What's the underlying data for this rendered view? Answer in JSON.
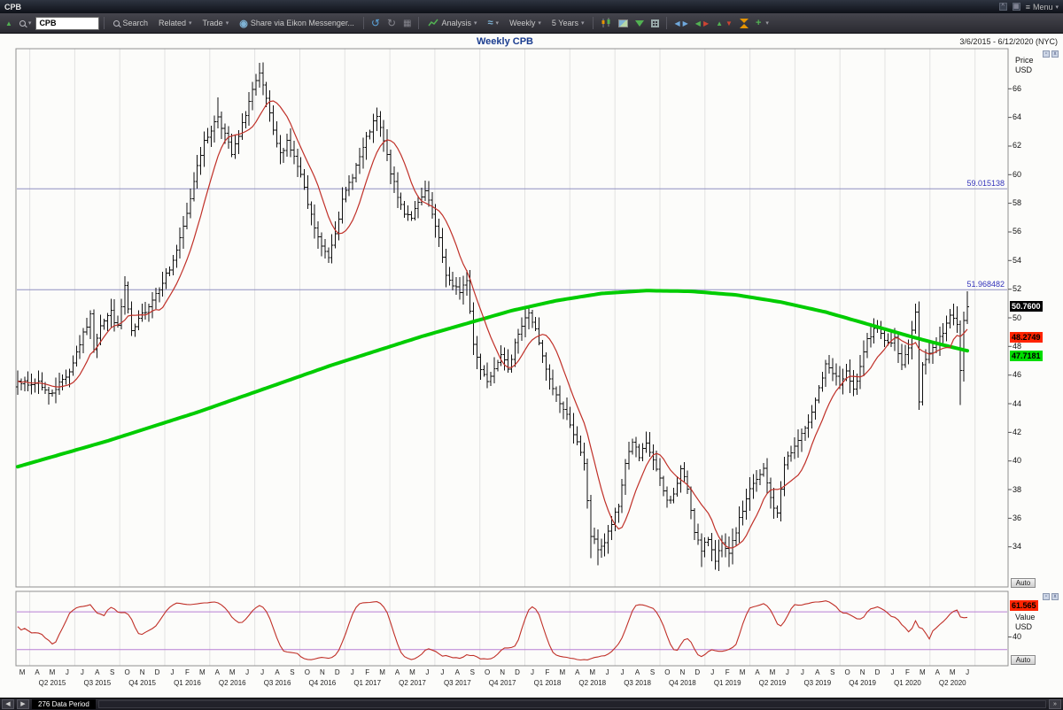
{
  "window": {
    "title": "CPB",
    "menu_label": "Menu"
  },
  "toolbar": {
    "symbol_value": "CPB",
    "search_label": "Search",
    "related_label": "Related",
    "trade_label": "Trade",
    "share_label": "Share via Eikon Messenger...",
    "analysis_label": "Analysis",
    "interval_label": "Weekly",
    "range_label": "5 Years"
  },
  "chart_header": {
    "title": "Weekly CPB",
    "date_range": "3/6/2015 - 6/12/2020 (NYC)"
  },
  "price_axis": {
    "label": "Price",
    "unit": "USD",
    "auto_label": "Auto",
    "ticks": [
      66,
      64,
      62,
      60,
      58,
      56,
      54,
      52,
      50,
      48,
      46,
      44,
      42,
      40,
      38,
      36,
      34
    ]
  },
  "price_flags": {
    "last": "50.7600",
    "ma_short": "48.2749",
    "ma_long": "47.7181"
  },
  "levels": [
    {
      "label": "59.015138",
      "value": 59.015138
    },
    {
      "label": "51.968482",
      "value": 51.968482
    }
  ],
  "indicator_axis": {
    "label": "Value",
    "unit": "USD",
    "tick_label": "40",
    "tick_value": 40,
    "value_flag": "61.565",
    "auto_label": "Auto"
  },
  "x_axis": {
    "months": [
      "M",
      "A",
      "M",
      "J",
      "J",
      "A",
      "S",
      "O",
      "N",
      "D",
      "J",
      "F",
      "M",
      "A",
      "M",
      "J",
      "J",
      "A",
      "S",
      "O",
      "N",
      "D",
      "J",
      "F",
      "M",
      "A",
      "M",
      "J",
      "J",
      "A",
      "S",
      "O",
      "N",
      "D",
      "J",
      "F",
      "M",
      "A",
      "M",
      "J",
      "J",
      "A",
      "S",
      "O",
      "N",
      "D",
      "J",
      "F",
      "M",
      "A",
      "M",
      "J",
      "J",
      "A",
      "S",
      "O",
      "N",
      "D",
      "J",
      "F",
      "M",
      "A",
      "M",
      "J"
    ],
    "quarters": [
      "Q2 2015",
      "Q3 2015",
      "Q4 2015",
      "Q1 2016",
      "Q2 2016",
      "Q3 2016",
      "Q4 2016",
      "Q1 2017",
      "Q2 2017",
      "Q3 2017",
      "Q4 2017",
      "Q1 2018",
      "Q2 2018",
      "Q3 2018",
      "Q4 2018",
      "Q1 2019",
      "Q2 2019",
      "Q3 2019",
      "Q4 2019",
      "Q1 2020",
      "Q2 2020"
    ]
  },
  "status_bar": {
    "data_period": "276 Data Period"
  },
  "colors": {
    "ohlc": "#111111",
    "ma_short": "#c03028",
    "ma_long": "#00cc00",
    "level_line": "#8f8fc0",
    "level_text": "#3333bb",
    "band": "#b87fd4",
    "osc_line": "#c03028",
    "flag_last_bg": "#000000",
    "flag_last_fg": "#ffffff",
    "flag_ma_short_bg": "#ff2400",
    "flag_ma_long_bg": "#00dd00",
    "grid": "#e2e2e2",
    "frame": "#909090"
  },
  "chart_data": {
    "type": "ohlc",
    "symbol": "CPB",
    "interval": "Weekly",
    "title": "Weekly CPB",
    "date_range": "3/6/2015 - 6/12/2020 (NYC)",
    "periods": 276,
    "y_domain": [
      31.2,
      68.8
    ],
    "horizontal_levels": [
      59.015138,
      51.968482
    ],
    "ohlc": {
      "close_keyframes": [
        [
          0,
          45.8
        ],
        [
          3,
          45.2
        ],
        [
          6,
          45.6
        ],
        [
          9,
          44.6
        ],
        [
          12,
          45.4
        ],
        [
          15,
          46.3
        ],
        [
          17,
          47.6
        ],
        [
          19,
          48.8
        ],
        [
          21,
          50.1
        ],
        [
          22,
          47.9
        ],
        [
          24,
          49.6
        ],
        [
          27,
          50.4
        ],
        [
          29,
          49.3
        ],
        [
          31,
          52.2
        ],
        [
          33,
          48.9
        ],
        [
          36,
          50.2
        ],
        [
          39,
          51.3
        ],
        [
          42,
          52.6
        ],
        [
          44,
          53.4
        ],
        [
          47,
          55.4
        ],
        [
          49,
          57.2
        ],
        [
          52,
          60.8
        ],
        [
          54,
          62.2
        ],
        [
          56,
          63.2
        ],
        [
          58,
          64.1
        ],
        [
          60,
          62.8
        ],
        [
          62,
          61.4
        ],
        [
          64,
          62.6
        ],
        [
          66,
          64.3
        ],
        [
          68,
          65.9
        ],
        [
          70,
          66.9
        ],
        [
          72,
          65.3
        ],
        [
          74,
          62.9
        ],
        [
          76,
          61.4
        ],
        [
          78,
          62.4
        ],
        [
          80,
          61.2
        ],
        [
          82,
          59.9
        ],
        [
          84,
          57.9
        ],
        [
          86,
          56.3
        ],
        [
          88,
          54.9
        ],
        [
          90,
          54.3
        ],
        [
          92,
          56.1
        ],
        [
          94,
          58.1
        ],
        [
          96,
          59.4
        ],
        [
          98,
          60.6
        ],
        [
          100,
          61.8
        ],
        [
          102,
          63.1
        ],
        [
          104,
          64.0
        ],
        [
          106,
          62.3
        ],
        [
          108,
          60.2
        ],
        [
          110,
          58.4
        ],
        [
          112,
          57.4
        ],
        [
          114,
          57.1
        ],
        [
          116,
          57.9
        ],
        [
          118,
          58.8
        ],
        [
          120,
          57.2
        ],
        [
          122,
          55.4
        ],
        [
          124,
          53.1
        ],
        [
          126,
          52.1
        ],
        [
          128,
          51.9
        ],
        [
          130,
          52.6
        ],
        [
          132,
          48.3
        ],
        [
          134,
          46.4
        ],
        [
          136,
          45.7
        ],
        [
          138,
          46.6
        ],
        [
          140,
          47.6
        ],
        [
          142,
          46.2
        ],
        [
          144,
          48.4
        ],
        [
          146,
          49.4
        ],
        [
          148,
          50.4
        ],
        [
          150,
          49.1
        ],
        [
          152,
          47.2
        ],
        [
          154,
          45.6
        ],
        [
          156,
          44.6
        ],
        [
          158,
          43.6
        ],
        [
          160,
          42.7
        ],
        [
          162,
          41.2
        ],
        [
          164,
          39.7
        ],
        [
          166,
          34.8
        ],
        [
          168,
          33.9
        ],
        [
          170,
          34.3
        ],
        [
          172,
          35.6
        ],
        [
          174,
          36.8
        ],
        [
          176,
          39.9
        ],
        [
          178,
          41.4
        ],
        [
          180,
          40.2
        ],
        [
          182,
          41.1
        ],
        [
          184,
          40.1
        ],
        [
          186,
          38.6
        ],
        [
          188,
          37.2
        ],
        [
          190,
          37.6
        ],
        [
          192,
          39.4
        ],
        [
          194,
          38.1
        ],
        [
          196,
          35.2
        ],
        [
          198,
          33.6
        ],
        [
          200,
          34.6
        ],
        [
          202,
          33.2
        ],
        [
          204,
          34.1
        ],
        [
          206,
          33.4
        ],
        [
          208,
          35.1
        ],
        [
          210,
          36.6
        ],
        [
          212,
          38.1
        ],
        [
          214,
          38.6
        ],
        [
          216,
          39.4
        ],
        [
          218,
          37.4
        ],
        [
          220,
          36.2
        ],
        [
          222,
          39.9
        ],
        [
          224,
          40.6
        ],
        [
          226,
          41.4
        ],
        [
          228,
          42.1
        ],
        [
          230,
          43.6
        ],
        [
          232,
          45.1
        ],
        [
          234,
          46.6
        ],
        [
          236,
          46.1
        ],
        [
          238,
          45.4
        ],
        [
          240,
          46.1
        ],
        [
          242,
          44.9
        ],
        [
          244,
          46.4
        ],
        [
          246,
          48.4
        ],
        [
          248,
          49.4
        ],
        [
          250,
          49.1
        ],
        [
          252,
          48.1
        ],
        [
          254,
          48.6
        ],
        [
          256,
          46.6
        ],
        [
          258,
          48.1
        ],
        [
          260,
          50.2
        ],
        [
          261,
          44.3
        ],
        [
          262,
          46.9
        ],
        [
          264,
          47.4
        ],
        [
          266,
          48.3
        ],
        [
          268,
          49.1
        ],
        [
          270,
          50.2
        ],
        [
          272,
          49.7
        ],
        [
          273,
          46.2
        ],
        [
          274,
          49.9
        ],
        [
          275,
          50.76
        ]
      ],
      "high_overrides": [
        [
          58,
          65.4
        ],
        [
          70,
          67.8
        ],
        [
          104,
          64.5
        ],
        [
          275,
          51.85
        ]
      ],
      "low_overrides": [
        [
          166,
          33.2
        ],
        [
          168,
          32.7
        ],
        [
          198,
          32.6
        ],
        [
          202,
          32.4
        ],
        [
          206,
          32.6
        ],
        [
          261,
          43.8
        ],
        [
          273,
          43.9
        ]
      ]
    },
    "ma_short": {
      "window": 10,
      "last_value": 48.2749
    },
    "ma_long": {
      "last_value": 47.7181,
      "keyframes": [
        [
          0,
          39.6
        ],
        [
          13,
          40.5
        ],
        [
          26,
          41.4
        ],
        [
          39,
          42.4
        ],
        [
          52,
          43.4
        ],
        [
          65,
          44.5
        ],
        [
          78,
          45.6
        ],
        [
          91,
          46.7
        ],
        [
          104,
          47.7
        ],
        [
          117,
          48.7
        ],
        [
          130,
          49.6
        ],
        [
          143,
          50.5
        ],
        [
          156,
          51.2
        ],
        [
          169,
          51.7
        ],
        [
          182,
          51.9
        ],
        [
          195,
          51.85
        ],
        [
          208,
          51.6
        ],
        [
          221,
          51.1
        ],
        [
          234,
          50.4
        ],
        [
          247,
          49.5
        ],
        [
          260,
          48.6
        ],
        [
          268,
          48.1
        ],
        [
          275,
          47.7
        ]
      ]
    },
    "indicator": {
      "type": "stochastic",
      "last_value": 61.565,
      "bands": [
        80,
        20
      ],
      "y_domain": [
        0,
        104
      ]
    }
  }
}
